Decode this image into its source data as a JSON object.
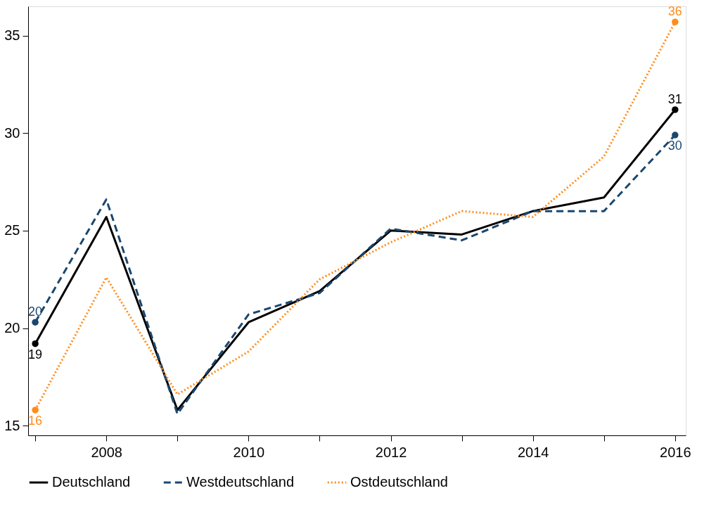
{
  "chart_data": {
    "type": "line",
    "x": [
      2007,
      2008,
      2009,
      2010,
      2011,
      2012,
      2013,
      2014,
      2015,
      2016
    ],
    "series": [
      {
        "name": "Deutschland",
        "color": "#000000",
        "line_style": "solid",
        "values": [
          19.2,
          25.7,
          15.8,
          20.3,
          21.9,
          25.0,
          24.8,
          26.0,
          26.7,
          31.2
        ],
        "value_labels": [
          "19",
          null,
          null,
          null,
          null,
          null,
          null,
          null,
          null,
          "31"
        ]
      },
      {
        "name": "Westdeutschland",
        "color": "#1a476f",
        "line_style": "dashed",
        "values": [
          20.3,
          26.6,
          15.6,
          20.7,
          21.8,
          25.1,
          24.5,
          26.0,
          26.0,
          29.9
        ],
        "value_labels": [
          "20",
          null,
          null,
          null,
          null,
          null,
          null,
          null,
          null,
          "30"
        ]
      },
      {
        "name": "Ostdeutschland",
        "color": "#ff8c1a",
        "line_style": "dotted",
        "values": [
          15.8,
          22.6,
          16.6,
          18.8,
          22.5,
          24.4,
          26.0,
          25.7,
          28.8,
          35.7
        ],
        "value_labels": [
          "16",
          null,
          null,
          null,
          null,
          null,
          null,
          null,
          null,
          "36"
        ]
      }
    ],
    "xlim": [
      2006.9,
      2016.15
    ],
    "xticks": [
      {
        "value": 2007,
        "label": null
      },
      2008,
      {
        "value": 2009,
        "label": null
      },
      2010,
      {
        "value": 2011,
        "label": null
      },
      2012,
      {
        "value": 2013,
        "label": null
      },
      2014,
      {
        "value": 2015,
        "label": null
      },
      2016
    ],
    "ylim": [
      14.5,
      36.5
    ],
    "yticks": [
      15,
      20,
      25,
      30,
      35
    ],
    "grid": false,
    "legend": "bottom"
  }
}
